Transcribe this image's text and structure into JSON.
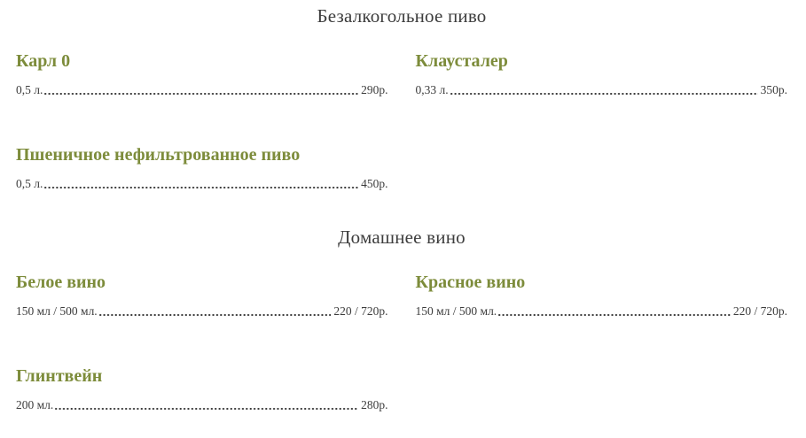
{
  "menu": {
    "sections": [
      {
        "title": "Безалкогольное пиво",
        "items": [
          {
            "name": "Карл 0",
            "size": "0,5 л.",
            "price": "290р."
          },
          {
            "name": "Клаусталер",
            "size": "0,33 л.",
            "price": "350р."
          },
          {
            "name": "Пшеничное нефильтрованное пиво",
            "size": "0,5 л.",
            "price": "450р."
          }
        ]
      },
      {
        "title": "Домашнее вино",
        "items": [
          {
            "name": "Белое вино",
            "size": "150 мл / 500 мл.",
            "price": "220 / 720р."
          },
          {
            "name": "Красное вино",
            "size": "150 мл / 500 мл.",
            "price": "220 / 720р."
          },
          {
            "name": "Глинтвейн",
            "size": "200 мл.",
            "price": "280р."
          }
        ]
      }
    ]
  },
  "colors": {
    "item_name": "#7d8c3b",
    "section_title": "#3d3d3d",
    "body_text": "#3c3c3c",
    "background": "#ffffff"
  }
}
